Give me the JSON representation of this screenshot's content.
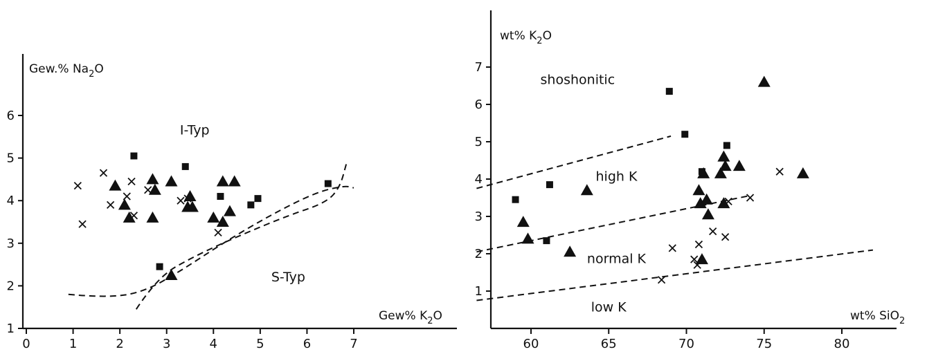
{
  "chart_data": [
    {
      "type": "scatter",
      "x_axis_label": "Gew%",
      "x_axis_species": "K",
      "x_axis_sub": "2",
      "x_axis_species_end": "O",
      "y_axis_label": "Gew.%",
      "y_axis_species": "Na",
      "y_axis_sub": "2",
      "y_axis_species_end": "O",
      "xlim": [
        0,
        7.5
      ],
      "ylim": [
        1,
        6.8
      ],
      "x_ticks": [
        "0",
        "1",
        "2",
        "3",
        "4",
        "5",
        "6",
        "7"
      ],
      "y_ticks": [
        "1",
        "2",
        "3",
        "4",
        "5",
        "6"
      ],
      "x_tick_values": [
        0,
        1,
        2,
        3,
        4,
        5,
        6,
        7
      ],
      "y_tick_values": [
        1,
        2,
        3,
        4,
        5,
        6
      ],
      "regions": [
        {
          "label": "I-Typ",
          "x": 3.6,
          "y": 5.55
        },
        {
          "label": "S-Typ",
          "x": 5.6,
          "y": 2.1
        }
      ],
      "boundaries": [
        {
          "points": [
            [
              0.9,
              1.8
            ],
            [
              1.7,
              1.72
            ],
            [
              2.5,
              1.85
            ],
            [
              3.3,
              2.35
            ],
            [
              4.2,
              3.0
            ],
            [
              5.2,
              3.65
            ],
            [
              6.2,
              4.2
            ],
            [
              6.8,
              4.35
            ],
            [
              7.0,
              4.3
            ]
          ]
        },
        {
          "points": [
            [
              2.35,
              1.45
            ],
            [
              2.8,
              2.2
            ],
            [
              3.6,
              2.7
            ],
            [
              4.6,
              3.2
            ],
            [
              5.6,
              3.65
            ],
            [
              6.4,
              3.95
            ],
            [
              6.7,
              4.3
            ],
            [
              6.85,
              4.9
            ]
          ]
        }
      ],
      "series": [
        {
          "marker": "triangle",
          "points": [
            [
              1.9,
              4.35
            ],
            [
              2.1,
              3.9
            ],
            [
              2.2,
              3.6
            ],
            [
              2.7,
              4.5
            ],
            [
              2.75,
              4.25
            ],
            [
              2.7,
              3.6
            ],
            [
              3.1,
              4.45
            ],
            [
              3.5,
              4.1
            ],
            [
              3.45,
              3.85
            ],
            [
              3.55,
              3.85
            ],
            [
              4.0,
              3.6
            ],
            [
              4.2,
              3.5
            ],
            [
              4.2,
              4.45
            ],
            [
              4.35,
              3.75
            ],
            [
              4.45,
              4.45
            ],
            [
              3.1,
              2.25
            ]
          ]
        },
        {
          "marker": "square",
          "points": [
            [
              2.3,
              5.05
            ],
            [
              3.4,
              4.8
            ],
            [
              4.15,
              4.1
            ],
            [
              4.8,
              3.9
            ],
            [
              4.95,
              4.05
            ],
            [
              2.85,
              2.45
            ],
            [
              6.45,
              4.4
            ]
          ]
        },
        {
          "marker": "cross",
          "points": [
            [
              1.1,
              4.35
            ],
            [
              1.2,
              3.45
            ],
            [
              1.65,
              4.65
            ],
            [
              1.8,
              3.9
            ],
            [
              2.15,
              4.1
            ],
            [
              2.25,
              4.45
            ],
            [
              2.3,
              3.65
            ],
            [
              2.6,
              4.25
            ],
            [
              3.3,
              4.0
            ],
            [
              3.45,
              4.05
            ],
            [
              4.1,
              3.25
            ]
          ]
        }
      ]
    },
    {
      "type": "scatter",
      "x_axis_label": "wt%",
      "x_axis_species": "SiO",
      "x_axis_sub": "2",
      "x_axis_species_end": "",
      "y_axis_label": "wt%",
      "y_axis_species": "K",
      "y_axis_sub": "2",
      "y_axis_species_end": "O",
      "xlim": [
        56.5,
        86.5
      ],
      "ylim": [
        0,
        7.8
      ],
      "x_ticks": [
        "60",
        "65",
        "70",
        "75",
        "80"
      ],
      "y_ticks": [
        "1",
        "2",
        "3",
        "4",
        "5",
        "6",
        "7"
      ],
      "x_tick_values": [
        60,
        65,
        70,
        75,
        80
      ],
      "y_tick_values": [
        1,
        2,
        3,
        4,
        5,
        6,
        7
      ],
      "regions": [
        {
          "label": "shoshonitic",
          "x": 63.0,
          "y": 6.55
        },
        {
          "label": "high K",
          "x": 65.5,
          "y": 3.95
        },
        {
          "label": "normal K",
          "x": 65.5,
          "y": 1.75
        },
        {
          "label": "low K",
          "x": 65.0,
          "y": 0.45
        }
      ],
      "boundaries": [
        {
          "points": [
            [
              56.5,
              3.75
            ],
            [
              69.0,
              5.15
            ]
          ]
        },
        {
          "points": [
            [
              56.5,
              2.05
            ],
            [
              74.0,
              3.55
            ]
          ]
        },
        {
          "points": [
            [
              56.5,
              0.75
            ],
            [
              82.0,
              2.1
            ]
          ]
        }
      ],
      "series": [
        {
          "marker": "triangle",
          "points": [
            [
              59.5,
              2.85
            ],
            [
              59.8,
              2.4
            ],
            [
              62.5,
              2.05
            ],
            [
              63.6,
              3.7
            ],
            [
              70.8,
              3.7
            ],
            [
              70.9,
              3.35
            ],
            [
              71.1,
              4.15
            ],
            [
              71.3,
              3.45
            ],
            [
              71.4,
              3.05
            ],
            [
              71.0,
              1.85
            ],
            [
              72.2,
              4.15
            ],
            [
              72.4,
              4.6
            ],
            [
              72.5,
              4.35
            ],
            [
              72.4,
              3.35
            ],
            [
              73.4,
              4.35
            ],
            [
              75.0,
              6.6
            ],
            [
              77.5,
              4.15
            ]
          ]
        },
        {
          "marker": "square",
          "points": [
            [
              59.0,
              3.45
            ],
            [
              61.0,
              2.35
            ],
            [
              61.2,
              3.85
            ],
            [
              68.9,
              6.35
            ],
            [
              69.9,
              5.2
            ],
            [
              71.0,
              4.2
            ],
            [
              72.6,
              4.9
            ]
          ]
        },
        {
          "marker": "cross",
          "points": [
            [
              68.4,
              1.3
            ],
            [
              69.1,
              2.15
            ],
            [
              70.5,
              1.85
            ],
            [
              70.7,
              1.7
            ],
            [
              70.8,
              2.25
            ],
            [
              71.7,
              2.6
            ],
            [
              72.5,
              2.45
            ],
            [
              72.7,
              3.4
            ],
            [
              74.1,
              3.5
            ],
            [
              76.0,
              4.2
            ]
          ]
        }
      ]
    }
  ]
}
